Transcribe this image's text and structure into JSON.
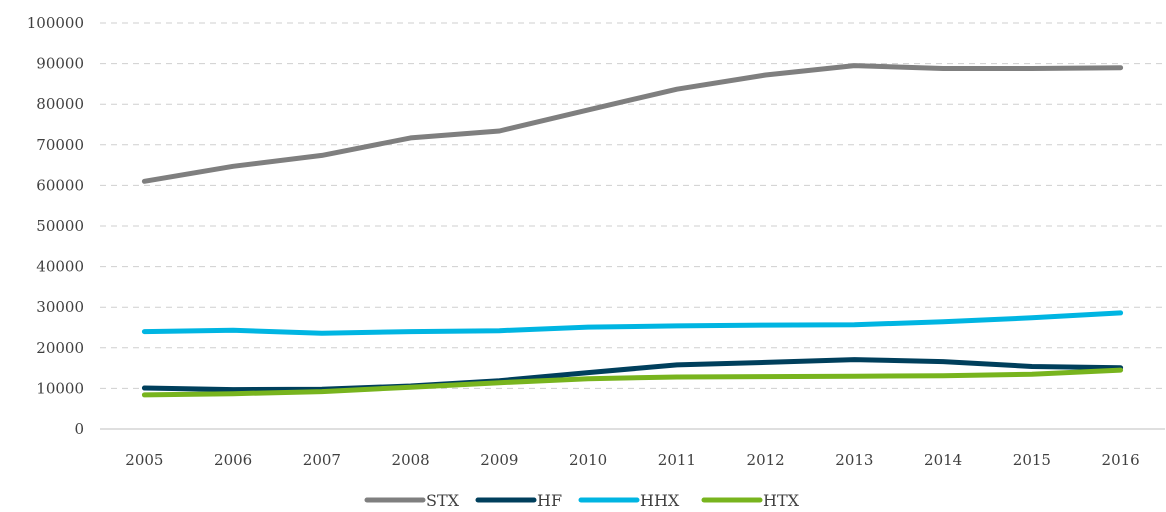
{
  "chart_data": {
    "type": "line",
    "x": [
      "2005",
      "2006",
      "2007",
      "2008",
      "2009",
      "2010",
      "2011",
      "2012",
      "2013",
      "2014",
      "2015",
      "2016"
    ],
    "ylim": [
      0,
      100000
    ],
    "yticks": [
      0,
      10000,
      20000,
      30000,
      40000,
      50000,
      60000,
      70000,
      80000,
      90000,
      100000
    ],
    "grid": true,
    "legend_position": "bottom",
    "series": [
      {
        "name": "STX",
        "color": "#7f7f7f",
        "values": [
          61000,
          64700,
          67400,
          71700,
          73400,
          78600,
          83700,
          87200,
          89500,
          88800,
          88800,
          89000
        ]
      },
      {
        "name": "HF",
        "color": "#003f5c",
        "values": [
          10100,
          9700,
          9800,
          10600,
          11900,
          13900,
          15800,
          16400,
          17100,
          16600,
          15400,
          15100
        ]
      },
      {
        "name": "HHX",
        "color": "#00b5e2",
        "values": [
          24000,
          24300,
          23600,
          24000,
          24200,
          25100,
          25400,
          25600,
          25700,
          26400,
          27400,
          28600
        ]
      },
      {
        "name": "HTX",
        "color": "#78b41e",
        "values": [
          8400,
          8700,
          9200,
          10300,
          11400,
          12400,
          12800,
          12900,
          13000,
          13100,
          13500,
          14500
        ]
      }
    ]
  }
}
